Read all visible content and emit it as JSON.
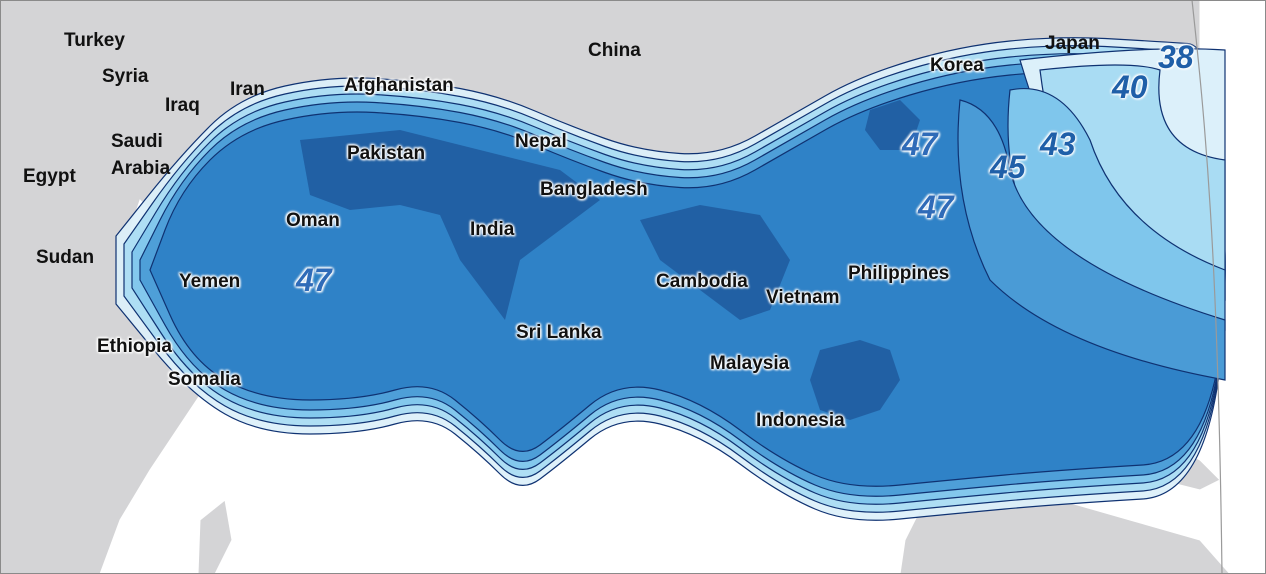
{
  "map": {
    "countries": [
      {
        "key": "turkey",
        "label": "Turkey"
      },
      {
        "key": "syria",
        "label": "Syria"
      },
      {
        "key": "iraq",
        "label": "Iraq"
      },
      {
        "key": "iran",
        "label": "Iran"
      },
      {
        "key": "afghanistan",
        "label": "Afghanistan"
      },
      {
        "key": "china",
        "label": "China"
      },
      {
        "key": "korea",
        "label": "Korea"
      },
      {
        "key": "japan",
        "label": "Japan"
      },
      {
        "key": "saudi",
        "label": "Saudi"
      },
      {
        "key": "arabia",
        "label": "Arabia"
      },
      {
        "key": "egypt",
        "label": "Egypt"
      },
      {
        "key": "sudan",
        "label": "Sudan"
      },
      {
        "key": "pakistan",
        "label": "Pakistan"
      },
      {
        "key": "nepal",
        "label": "Nepal"
      },
      {
        "key": "bangladesh",
        "label": "Bangladesh"
      },
      {
        "key": "oman",
        "label": "Oman"
      },
      {
        "key": "india",
        "label": "India"
      },
      {
        "key": "yemen",
        "label": "Yemen"
      },
      {
        "key": "cambodia",
        "label": "Cambodia"
      },
      {
        "key": "vietnam",
        "label": "Vietnam"
      },
      {
        "key": "philippines",
        "label": "Philippines"
      },
      {
        "key": "ethiopia",
        "label": "Ethiopia"
      },
      {
        "key": "sri_lanka",
        "label": "Sri Lanka"
      },
      {
        "key": "somalia",
        "label": "Somalia"
      },
      {
        "key": "malaysia",
        "label": "Malaysia"
      },
      {
        "key": "indonesia",
        "label": "Indonesia"
      }
    ],
    "contour_labels": [
      {
        "key": "c38",
        "value": "38"
      },
      {
        "key": "c40",
        "value": "40"
      },
      {
        "key": "c43",
        "value": "43"
      },
      {
        "key": "c45",
        "value": "45"
      },
      {
        "key": "c47_korea",
        "value": "47"
      },
      {
        "key": "c47_east",
        "value": "47"
      },
      {
        "key": "c47_arabian_sea",
        "value": "47"
      }
    ],
    "colors": {
      "ocean": "#ffffff",
      "land": "#d4d4d6",
      "border": "#ffffff",
      "contour_line": "#0f3272",
      "level_38": "#dcf0fa",
      "level_40": "#a9dcf3",
      "level_43": "#7fc6ec",
      "level_45": "#4a9bd6",
      "level_47": "#2c7fc6",
      "peak": "#1f5a9e"
    }
  }
}
